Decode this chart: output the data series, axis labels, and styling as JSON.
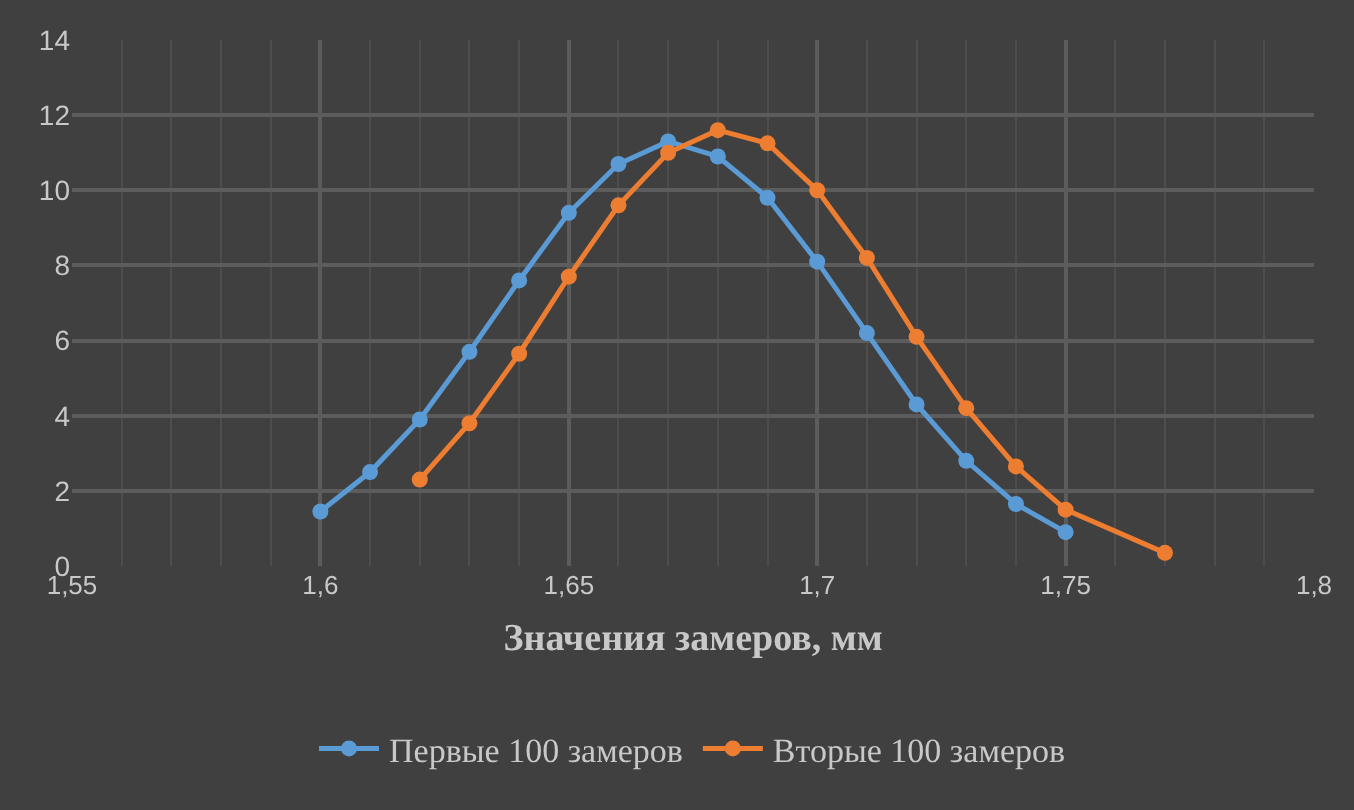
{
  "chart_data": {
    "type": "line",
    "xlabel": "Значения замеров, мм",
    "xlim": [
      1.55,
      1.8
    ],
    "xticks": [
      {
        "value": 1.55,
        "label": "1,55"
      },
      {
        "value": 1.6,
        "label": "1,6"
      },
      {
        "value": 1.65,
        "label": "1,65"
      },
      {
        "value": 1.7,
        "label": "1,7"
      },
      {
        "value": 1.75,
        "label": "1,75"
      },
      {
        "value": 1.8,
        "label": "1,8"
      }
    ],
    "ylim": [
      0,
      14
    ],
    "yticks": [
      0,
      2,
      4,
      6,
      8,
      10,
      12,
      14
    ],
    "grid": true,
    "legend": "bottom",
    "marker": "circle",
    "line_style": "solid",
    "series": [
      {
        "name": "Первые 100 замеров",
        "color": "#5b9bd5",
        "x": [
          1.6,
          1.61,
          1.62,
          1.63,
          1.64,
          1.65,
          1.66,
          1.67,
          1.68,
          1.69,
          1.7,
          1.71,
          1.72,
          1.73,
          1.74,
          1.75
        ],
        "values": [
          1.45,
          2.5,
          3.9,
          5.7,
          7.6,
          9.4,
          10.7,
          11.3,
          10.9,
          9.8,
          8.1,
          6.2,
          4.3,
          2.8,
          1.65,
          0.9
        ]
      },
      {
        "name": "Вторые 100 замеров",
        "color": "#ed7d31",
        "x": [
          1.62,
          1.63,
          1.64,
          1.65,
          1.66,
          1.67,
          1.68,
          1.69,
          1.7,
          1.71,
          1.72,
          1.73,
          1.74,
          1.75,
          1.77
        ],
        "values": [
          2.3,
          3.8,
          5.65,
          7.7,
          9.6,
          11.0,
          11.6,
          11.25,
          10.0,
          8.2,
          6.1,
          4.2,
          2.65,
          1.5,
          0.35
        ]
      }
    ]
  }
}
